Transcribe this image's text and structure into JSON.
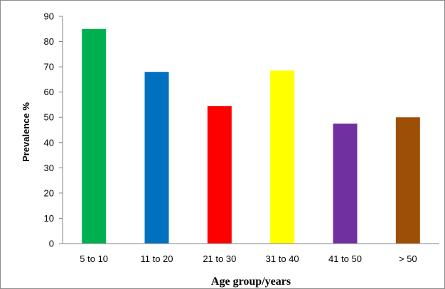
{
  "chart_data": {
    "type": "bar",
    "title": "",
    "xlabel": "Age group/years",
    "ylabel": "Prevalence %",
    "ylim": [
      0,
      90
    ],
    "yticks": [
      0,
      10,
      20,
      30,
      40,
      50,
      60,
      70,
      80,
      90
    ],
    "grid": false,
    "legend": "none",
    "categories": [
      "5 to 10",
      "11 to 20",
      "21 to 30",
      "31 to 40",
      "41 to 50",
      "> 50"
    ],
    "values": [
      85,
      68,
      54.5,
      68.5,
      47.5,
      50
    ],
    "colors": [
      "#00b050",
      "#0070c0",
      "#ff0000",
      "#ffff00",
      "#7030a0",
      "#9c4f05"
    ]
  }
}
